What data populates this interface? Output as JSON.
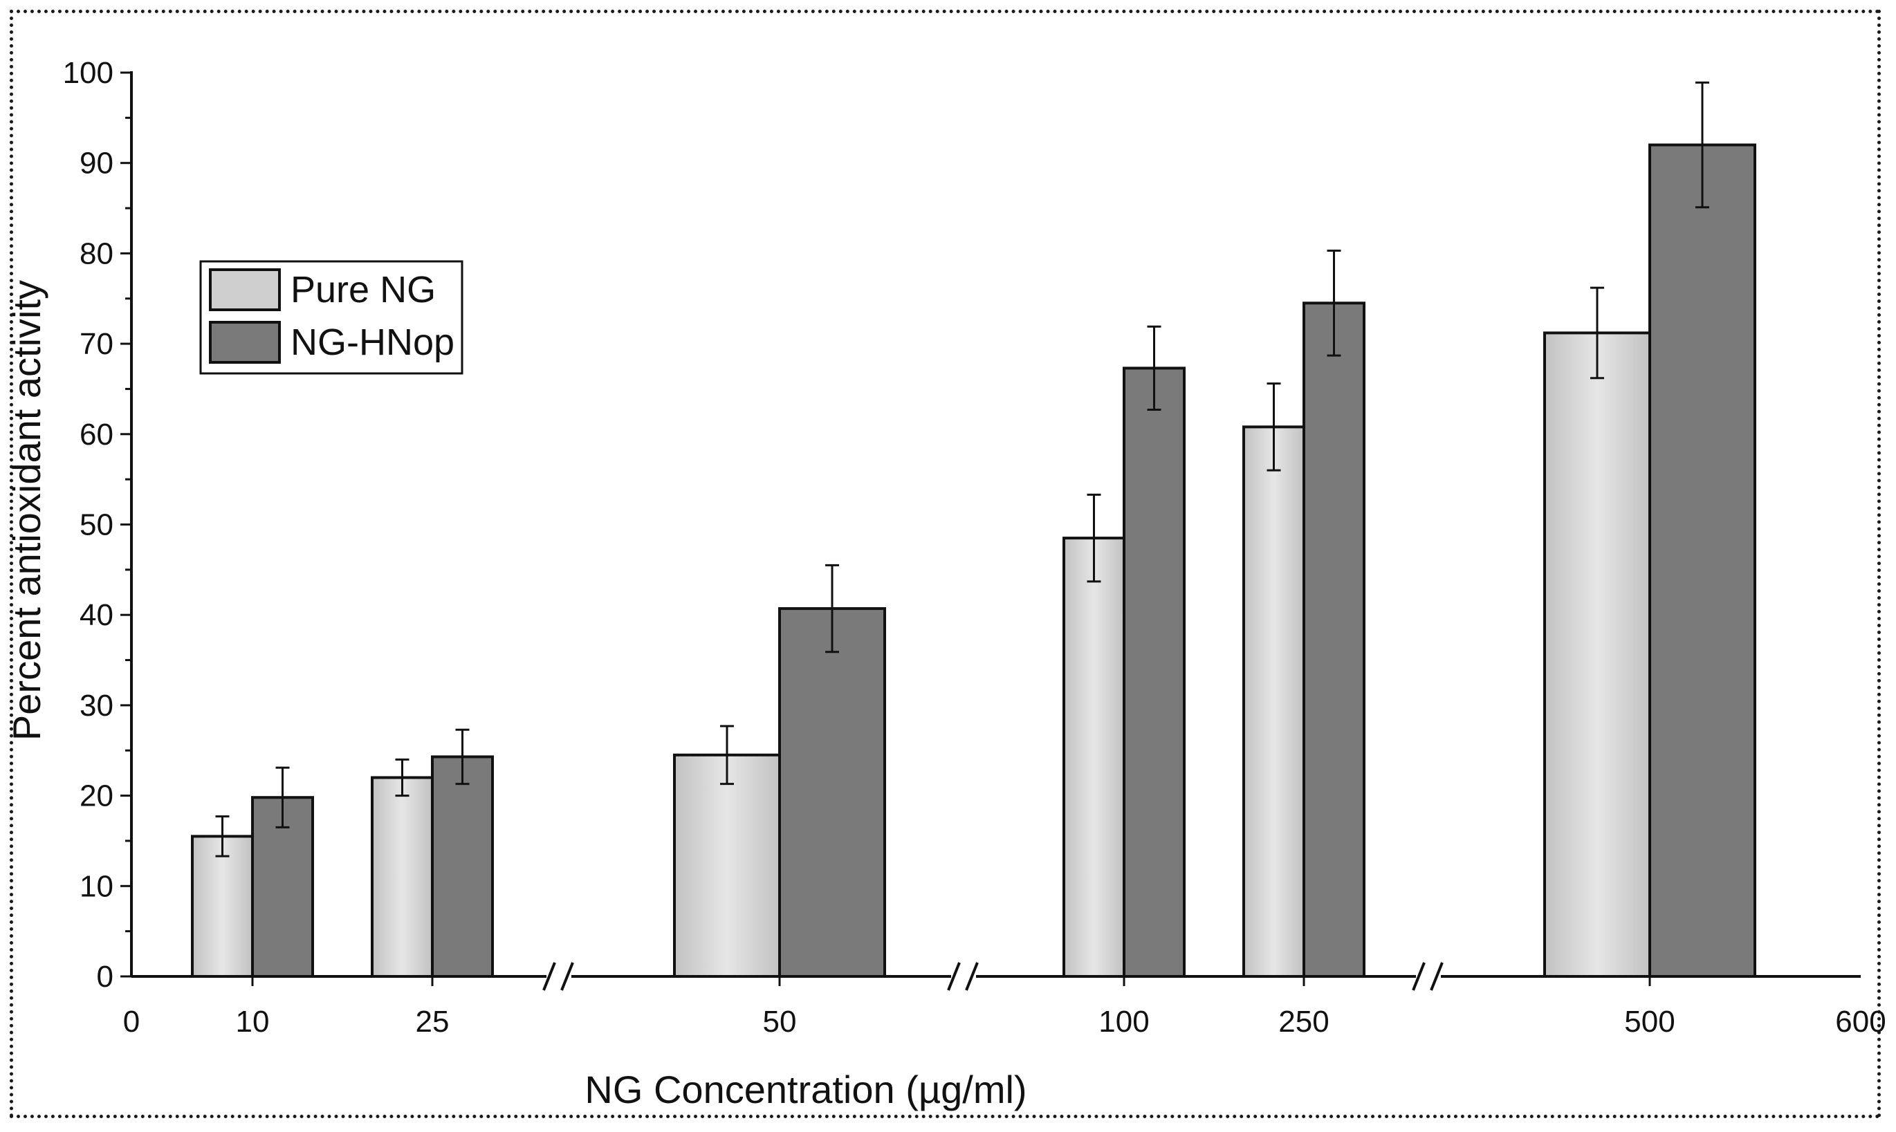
{
  "chart_data": {
    "type": "bar",
    "title": "",
    "xlabel": "NG Concentration (µg/ml)",
    "ylabel": "Percent antioxidant activity",
    "ylim": [
      0,
      100
    ],
    "y_ticks": [
      "0",
      "10",
      "20",
      "30",
      "40",
      "50",
      "60",
      "70",
      "80",
      "90",
      "100"
    ],
    "x_axis_start_label": "0",
    "x_axis_end_label": "600",
    "categories": [
      "10",
      "25",
      "50",
      "100",
      "250",
      "500"
    ],
    "axis_breaks": "3 (after 25, after 50, after 250)",
    "series": [
      {
        "name": "Pure NG",
        "color": "#cfcfcf",
        "values": [
          15.5,
          22,
          24.5,
          48.5,
          60.8,
          71.2
        ],
        "errors": [
          2.2,
          2,
          3.2,
          4.8,
          4.8,
          5
        ]
      },
      {
        "name": "NG-HNop",
        "color": "#7a7a7a",
        "values": [
          19.8,
          24.3,
          40.7,
          67.3,
          74.5,
          92
        ],
        "errors": [
          3.3,
          3,
          4.8,
          4.6,
          5.8,
          6.9
        ]
      }
    ],
    "legend": {
      "position": "top-left"
    }
  }
}
